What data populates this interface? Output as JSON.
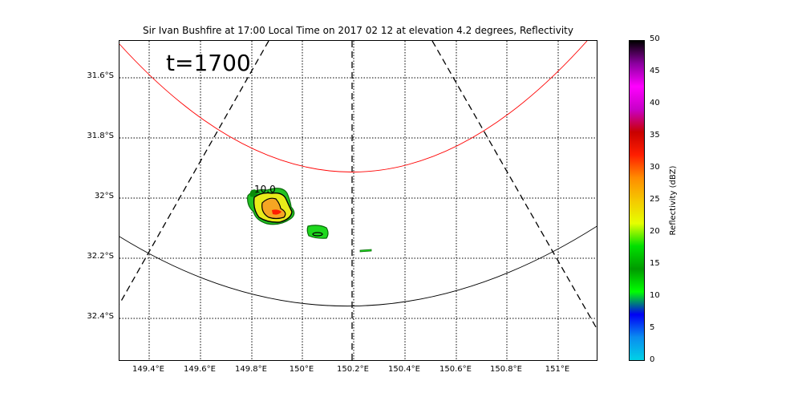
{
  "title": "Sir Ivan Bushfire at 17:00 Local Time on 2017 02 12 at elevation 4.2 degrees, Reflectivity",
  "overlay_time": "t=1700",
  "contour_label": "10.0",
  "colorbar": {
    "label": "Reflectivity (dBZ)",
    "ticks": [
      "0",
      "5",
      "10",
      "15",
      "20",
      "25",
      "30",
      "35",
      "40",
      "45",
      "50"
    ],
    "stops": [
      "#00d2e6",
      "#0a8cf0",
      "#0000f5",
      "#00ff00",
      "#009a00",
      "#00e000",
      "#e6ff00",
      "#f5c800",
      "#ff8c00",
      "#ff1e00",
      "#c80000",
      "#c800c8",
      "#ff00ff",
      "#8c00a0",
      "#000000"
    ]
  },
  "chart_data": {
    "type": "map",
    "x_ticks": [
      "149.4°E",
      "149.6°E",
      "149.8°E",
      "150°E",
      "150.2°E",
      "150.4°E",
      "150.6°E",
      "150.8°E",
      "151°E"
    ],
    "y_ticks": [
      "31.6°S",
      "31.8°S",
      "32°S",
      "32.2°S",
      "32.4°S"
    ],
    "xlim": [
      149.28,
      151.16
    ],
    "ylim": [
      -32.55,
      -31.48
    ],
    "colors": {
      "range_ring_inner": "#ff0000",
      "range_ring_outer": "#000000",
      "grid": "#000000"
    }
  }
}
